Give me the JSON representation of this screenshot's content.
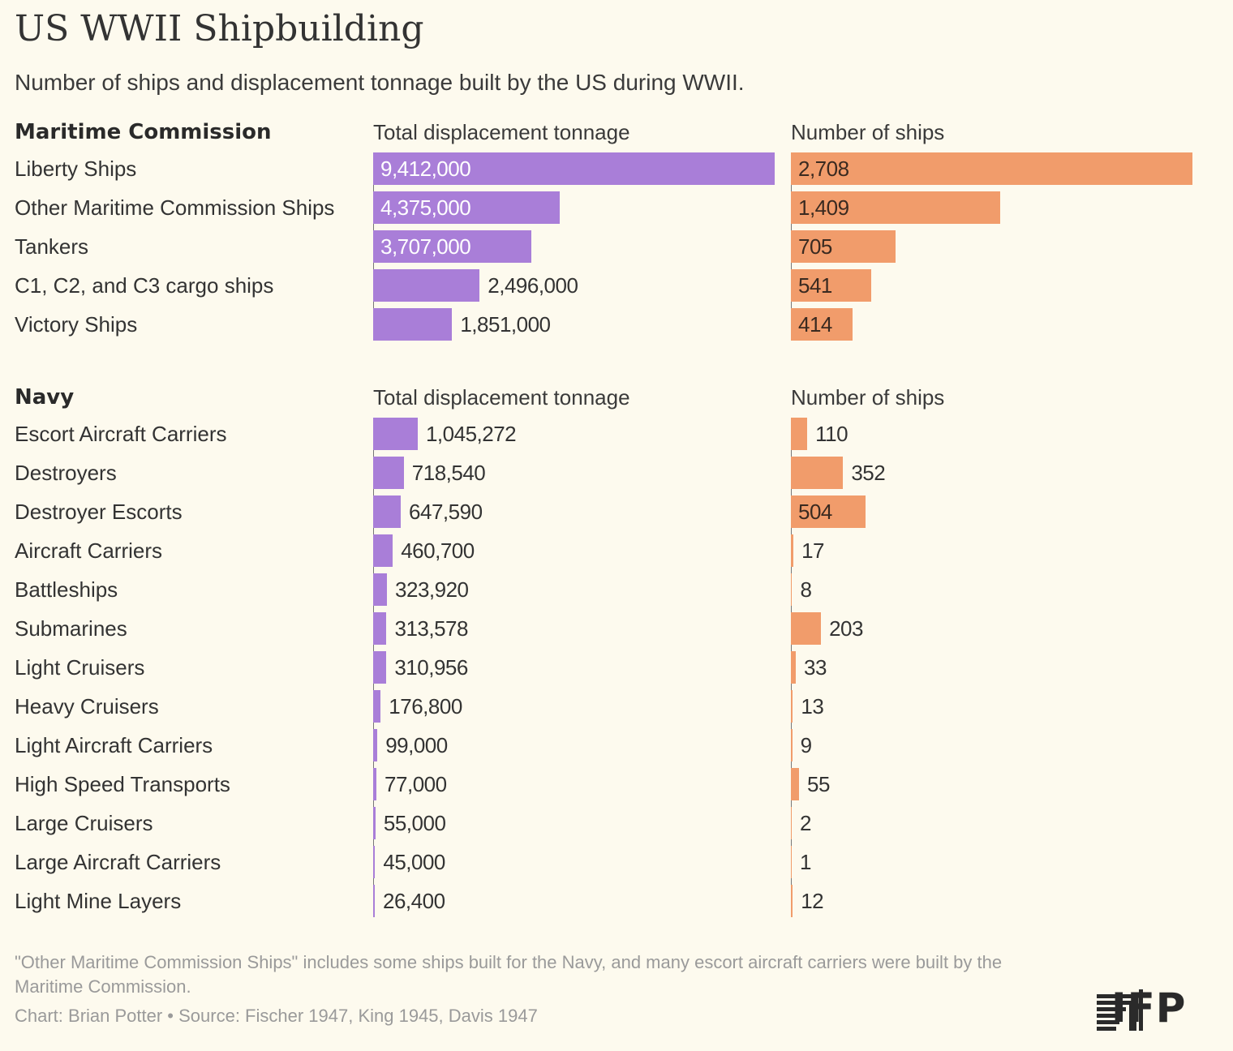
{
  "header": {
    "title": "US WWII Shipbuilding",
    "subtitle": "Number of ships and displacement tonnage built by the US during WWII."
  },
  "chart_data": [
    {
      "type": "bar",
      "orientation": "horizontal",
      "section": "Maritime Commission",
      "categories": [
        "Liberty Ships",
        "Other Maritime Commission Ships",
        "Tankers",
        "C1, C2, and C3 cargo ships",
        "Victory Ships"
      ],
      "series": [
        {
          "name": "Total displacement tonnage",
          "values": [
            9412000,
            4375000,
            3707000,
            2496000,
            1851000
          ],
          "labels": [
            "9,412,000",
            "4,375,000",
            "3,707,000",
            "2,496,000",
            "1,851,000"
          ],
          "color": "#a97ed8"
        },
        {
          "name": "Number of ships",
          "values": [
            2708,
            1409,
            705,
            541,
            414
          ],
          "labels": [
            "2,708",
            "1,409",
            "705",
            "541",
            "414"
          ],
          "color": "#f19c6b"
        }
      ]
    },
    {
      "type": "bar",
      "orientation": "horizontal",
      "section": "Navy",
      "categories": [
        "Escort Aircraft Carriers",
        "Destroyers",
        "Destroyer Escorts",
        "Aircraft Carriers",
        "Battleships",
        "Submarines",
        "Light Cruisers",
        "Heavy Cruisers",
        "Light Aircraft Carriers",
        "High Speed Transports",
        "Large Cruisers",
        "Large Aircraft Carriers",
        "Light Mine Layers"
      ],
      "series": [
        {
          "name": "Total displacement tonnage",
          "values": [
            1045272,
            718540,
            647590,
            460700,
            323920,
            313578,
            310956,
            176800,
            99000,
            77000,
            55000,
            45000,
            26400
          ],
          "labels": [
            "1,045,272",
            "718,540",
            "647,590",
            "460,700",
            "323,920",
            "313,578",
            "310,956",
            "176,800",
            "99,000",
            "77,000",
            "55,000",
            "45,000",
            "26,400"
          ],
          "color": "#a97ed8"
        },
        {
          "name": "Number of ships",
          "values": [
            110,
            352,
            504,
            17,
            8,
            203,
            33,
            13,
            9,
            55,
            2,
            1,
            12
          ],
          "labels": [
            "110",
            "352",
            "504",
            "17",
            "8",
            "203",
            "33",
            "13",
            "9",
            "55",
            "2",
            "1",
            "12"
          ],
          "color": "#f19c6b"
        }
      ]
    }
  ],
  "footer": {
    "note": "\"Other Maritime Commission Ships\" includes some ships built for the Navy, and many escort aircraft carriers were built by the Maritime Commission.",
    "credit": "Chart: Brian Potter • Source: Fischer 1947, King 1945, Davis 1947",
    "logo_text": "IFP"
  }
}
